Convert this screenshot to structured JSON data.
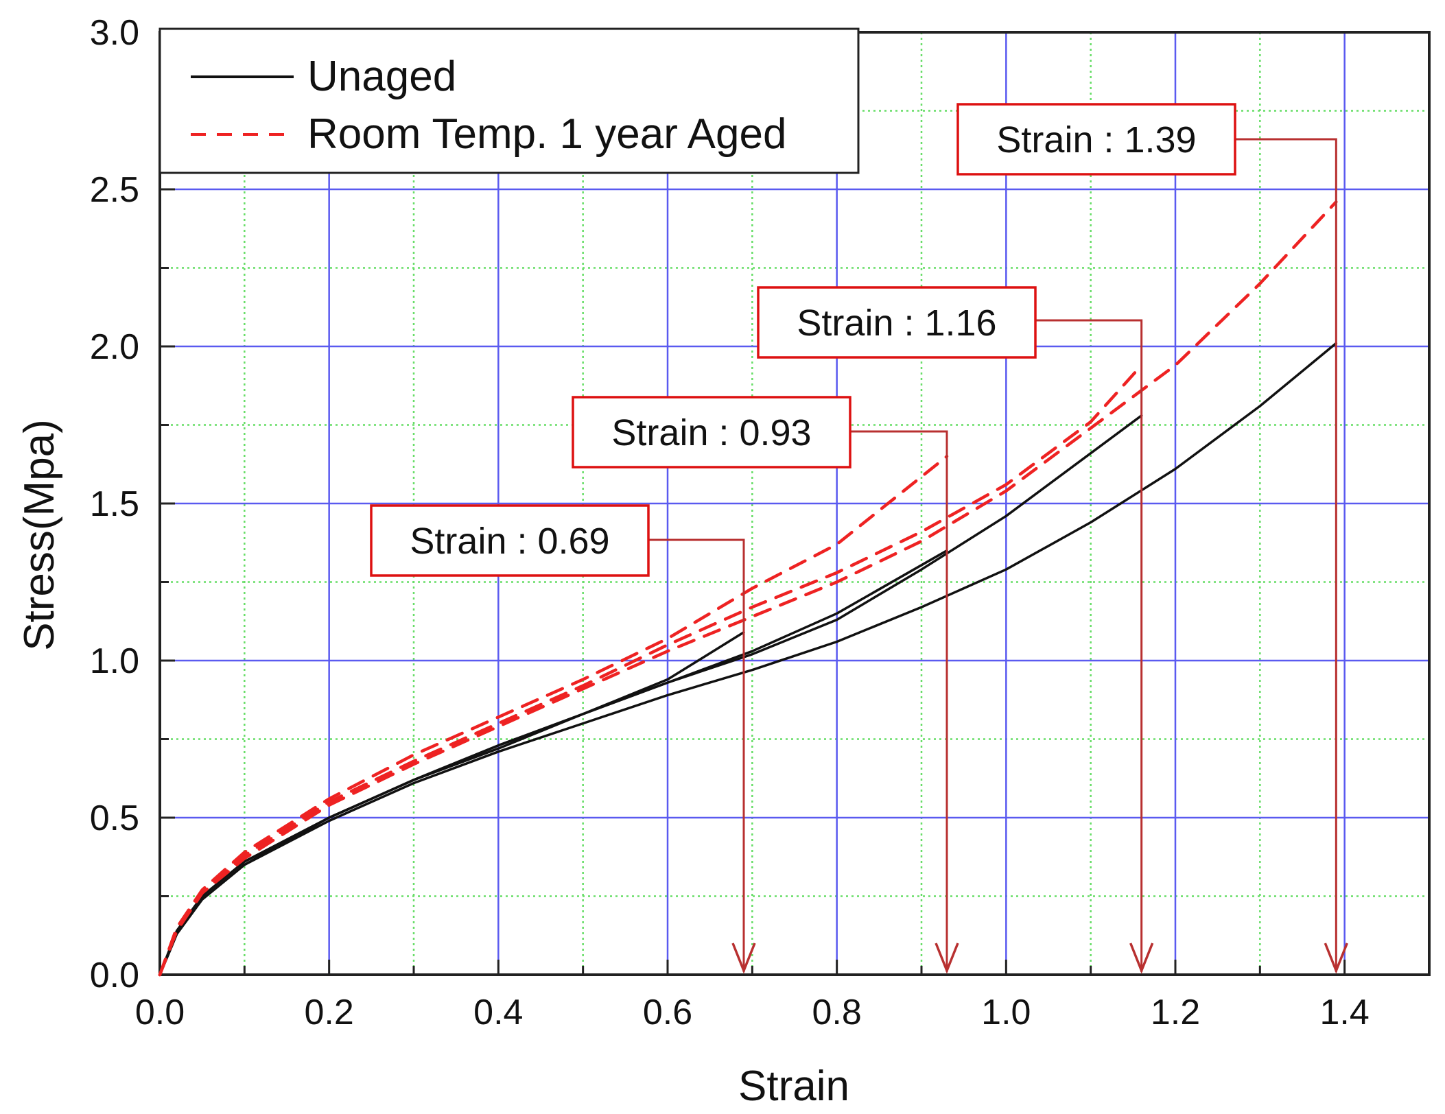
{
  "chart_data": {
    "type": "line",
    "xlabel": "Strain",
    "ylabel": "Stress(Mpa)",
    "xlim": [
      0.0,
      1.5
    ],
    "ylim": [
      0.0,
      3.0
    ],
    "x_ticks": [
      "0.0",
      "0.2",
      "0.4",
      "0.6",
      "0.8",
      "1.0",
      "1.2",
      "1.4"
    ],
    "x_tick_values": [
      0.0,
      0.2,
      0.4,
      0.6,
      0.8,
      1.0,
      1.2,
      1.4
    ],
    "y_ticks": [
      "0.0",
      "0.5",
      "1.0",
      "1.5",
      "2.0",
      "2.5",
      "3.0"
    ],
    "y_tick_values": [
      0.0,
      0.5,
      1.0,
      1.5,
      2.0,
      2.5,
      3.0
    ],
    "grid": {
      "major": true,
      "minor": true,
      "major_color": "#5a5af0",
      "minor_color": "#66dd66"
    },
    "legend": {
      "position": "top-left",
      "entries": [
        {
          "label": "Unaged",
          "color": "#111111",
          "dash": "solid"
        },
        {
          "label": "Room Temp. 1 year Aged",
          "color": "#ee2222",
          "dash": "dashed"
        }
      ]
    },
    "series": [
      {
        "name": "Unaged",
        "style": "solid",
        "color": "#111111",
        "x": [
          0,
          0.02,
          0.05,
          0.1,
          0.2,
          0.3,
          0.4,
          0.5,
          0.6,
          0.69
        ],
        "y": [
          0,
          0.14,
          0.25,
          0.36,
          0.5,
          0.62,
          0.72,
          0.83,
          0.94,
          1.09
        ]
      },
      {
        "name": "Unaged",
        "style": "solid",
        "color": "#111111",
        "x": [
          0,
          0.02,
          0.05,
          0.1,
          0.2,
          0.3,
          0.4,
          0.5,
          0.6,
          0.7,
          0.8,
          0.93
        ],
        "y": [
          0,
          0.14,
          0.25,
          0.36,
          0.5,
          0.62,
          0.73,
          0.83,
          0.93,
          1.03,
          1.15,
          1.35
        ]
      },
      {
        "name": "Unaged",
        "style": "solid",
        "color": "#111111",
        "x": [
          0,
          0.02,
          0.05,
          0.1,
          0.2,
          0.3,
          0.4,
          0.5,
          0.6,
          0.7,
          0.8,
          0.9,
          1.0,
          1.1,
          1.16
        ],
        "y": [
          0,
          0.13,
          0.24,
          0.35,
          0.5,
          0.62,
          0.73,
          0.83,
          0.93,
          1.02,
          1.13,
          1.29,
          1.46,
          1.66,
          1.78
        ]
      },
      {
        "name": "Unaged",
        "style": "solid",
        "color": "#111111",
        "x": [
          0,
          0.02,
          0.05,
          0.1,
          0.2,
          0.3,
          0.4,
          0.5,
          0.6,
          0.7,
          0.8,
          0.9,
          1.0,
          1.1,
          1.2,
          1.3,
          1.39
        ],
        "y": [
          0,
          0.13,
          0.24,
          0.35,
          0.49,
          0.61,
          0.71,
          0.8,
          0.89,
          0.97,
          1.06,
          1.17,
          1.29,
          1.44,
          1.61,
          1.81,
          2.01
        ]
      },
      {
        "name": "Room Temp. 1 year Aged",
        "style": "dashed",
        "color": "#ee2222",
        "x": [
          0,
          0.02,
          0.05,
          0.1,
          0.2,
          0.3,
          0.4,
          0.5,
          0.6,
          0.7,
          0.8,
          0.93
        ],
        "y": [
          0,
          0.15,
          0.27,
          0.39,
          0.56,
          0.7,
          0.82,
          0.94,
          1.07,
          1.23,
          1.37,
          1.65
        ]
      },
      {
        "name": "Room Temp. 1 year Aged",
        "style": "dashed",
        "color": "#ee2222",
        "x": [
          0,
          0.02,
          0.05,
          0.1,
          0.2,
          0.3,
          0.4,
          0.5,
          0.6,
          0.7,
          0.8,
          0.9,
          1.0,
          1.1,
          1.16
        ],
        "y": [
          0,
          0.15,
          0.26,
          0.38,
          0.55,
          0.68,
          0.8,
          0.92,
          1.05,
          1.17,
          1.28,
          1.41,
          1.56,
          1.76,
          1.94
        ]
      },
      {
        "name": "Room Temp. 1 year Aged",
        "style": "dashed",
        "color": "#ee2222",
        "x": [
          0,
          0.02,
          0.05,
          0.1,
          0.2,
          0.3,
          0.4,
          0.5,
          0.6,
          0.7,
          0.8,
          0.9,
          1.0,
          1.1,
          1.2,
          1.3,
          1.39
        ],
        "y": [
          0,
          0.14,
          0.26,
          0.37,
          0.54,
          0.67,
          0.79,
          0.91,
          1.03,
          1.14,
          1.25,
          1.38,
          1.54,
          1.74,
          1.94,
          2.2,
          2.46
        ]
      }
    ],
    "annotations": [
      {
        "label": "Strain",
        "sep": ":",
        "value": "0.69",
        "x": 0.69
      },
      {
        "label": "Strain",
        "sep": ":",
        "value": "0.93",
        "x": 0.93
      },
      {
        "label": "Strain",
        "sep": ":",
        "value": "1.16",
        "x": 1.16
      },
      {
        "label": "Strain",
        "sep": ":",
        "value": "1.39",
        "x": 1.39
      }
    ],
    "annotation_color": "#b83030",
    "annotation_box_color": "#dd1111"
  }
}
